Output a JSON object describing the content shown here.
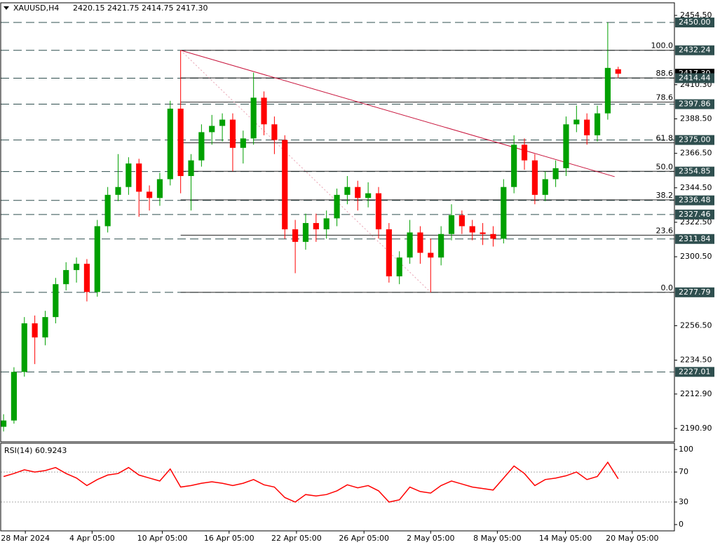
{
  "chart_data": [
    {
      "type": "candlestick",
      "title": "XAUUSD,H4",
      "subtitle": "2420.15 2421.75 2414.75 2417.30",
      "up_color": "#00a000",
      "down_color": "#ff0000",
      "level_color": "#2f4f4f",
      "candles": [
        [
          2192,
          2200,
          2189,
          2196
        ],
        [
          2196,
          2230,
          2194,
          2227
        ],
        [
          2227,
          2262,
          2224,
          2258
        ],
        [
          2258,
          2263,
          2232,
          2249
        ],
        [
          2249,
          2266,
          2244,
          2262
        ],
        [
          2262,
          2287,
          2258,
          2283
        ],
        [
          2283,
          2297,
          2279,
          2292
        ],
        [
          2292,
          2300,
          2284,
          2296
        ],
        [
          2296,
          2299,
          2272,
          2278
        ],
        [
          2278,
          2324,
          2275,
          2320
        ],
        [
          2320,
          2345,
          2316,
          2340
        ],
        [
          2340,
          2366,
          2336,
          2345
        ],
        [
          2345,
          2364,
          2340,
          2360
        ],
        [
          2360,
          2363,
          2326,
          2342
        ],
        [
          2342,
          2346,
          2330,
          2338
        ],
        [
          2338,
          2354,
          2333,
          2350
        ],
        [
          2350,
          2400,
          2346,
          2395
        ],
        [
          2395,
          2432.24,
          2341,
          2352
        ],
        [
          2352,
          2366,
          2330,
          2362
        ],
        [
          2362,
          2385,
          2358,
          2380
        ],
        [
          2380,
          2391,
          2372,
          2384
        ],
        [
          2384,
          2392,
          2374,
          2388
        ],
        [
          2388,
          2392,
          2355,
          2370
        ],
        [
          2370,
          2381,
          2360,
          2376
        ],
        [
          2376,
          2418,
          2372,
          2402
        ],
        [
          2402,
          2406,
          2378,
          2385
        ],
        [
          2385,
          2390,
          2366,
          2375
        ],
        [
          2375,
          2378,
          2312,
          2318
        ],
        [
          2318,
          2324,
          2290,
          2310
        ],
        [
          2310,
          2328,
          2305,
          2322
        ],
        [
          2322,
          2328,
          2310,
          2318
        ],
        [
          2318,
          2330,
          2312,
          2325
        ],
        [
          2325,
          2344,
          2320,
          2340
        ],
        [
          2340,
          2352,
          2334,
          2345
        ],
        [
          2345,
          2349,
          2330,
          2338
        ],
        [
          2338,
          2348,
          2332,
          2341
        ],
        [
          2341,
          2345,
          2312,
          2318
        ],
        [
          2318,
          2322,
          2284,
          2288
        ],
        [
          2288,
          2304,
          2283,
          2300
        ],
        [
          2300,
          2324,
          2296,
          2316
        ],
        [
          2316,
          2320,
          2296,
          2303
        ],
        [
          2303,
          2312,
          2277.79,
          2300
        ],
        [
          2300,
          2320,
          2295,
          2315
        ],
        [
          2315,
          2334,
          2311,
          2327
        ],
        [
          2327,
          2330,
          2315,
          2320
        ],
        [
          2320,
          2324,
          2311,
          2316
        ],
        [
          2316,
          2322,
          2308,
          2315
        ],
        [
          2315,
          2320,
          2307,
          2312
        ],
        [
          2312,
          2350,
          2309,
          2345
        ],
        [
          2345,
          2378,
          2341,
          2372
        ],
        [
          2372,
          2376,
          2356,
          2362
        ],
        [
          2362,
          2366,
          2334,
          2340
        ],
        [
          2340,
          2355,
          2336,
          2350
        ],
        [
          2350,
          2362,
          2345,
          2357
        ],
        [
          2357,
          2390,
          2352,
          2385
        ],
        [
          2385,
          2397,
          2380,
          2388
        ],
        [
          2388,
          2392,
          2372,
          2378
        ],
        [
          2378,
          2397,
          2374,
          2392
        ],
        [
          2392,
          2450,
          2388,
          2421
        ],
        [
          2420.15,
          2421.75,
          2414.75,
          2417.3
        ]
      ],
      "xlim": [
        -0.34,
        64.4
      ],
      "xticks": [
        {
          "value": 2.09,
          "label": "28 Mar 2024"
        },
        {
          "value": 8.5,
          "label": "4 Apr 05:00"
        },
        {
          "value": 15.24,
          "label": "10 Apr 05:00"
        },
        {
          "value": 21.65,
          "label": "16 Apr 05:00"
        },
        {
          "value": 28.12,
          "label": "22 Apr 05:00"
        },
        {
          "value": 34.6,
          "label": "26 Apr 05:00"
        },
        {
          "value": 41.0,
          "label": "2 May 05:00"
        },
        {
          "value": 47.4,
          "label": "8 May 05:00"
        },
        {
          "value": 53.94,
          "label": "14 May 05:00"
        },
        {
          "value": 60.35,
          "label": "20 May 05:00"
        }
      ],
      "ylim": [
        2183.3,
        2462.1
      ],
      "yticks": [
        {
          "value": 2454.5,
          "label": "2454.50"
        },
        {
          "value": 2410.3,
          "label": "2410.30"
        },
        {
          "value": 2388.5,
          "label": "2388.50"
        },
        {
          "value": 2366.5,
          "label": "2366.50"
        },
        {
          "value": 2344.5,
          "label": "2344.50"
        },
        {
          "value": 2322.5,
          "label": "2322.50"
        },
        {
          "value": 2300.5,
          "label": "2300.50"
        },
        {
          "value": 2256.5,
          "label": "2256.50"
        },
        {
          "value": 2234.5,
          "label": "2234.50"
        },
        {
          "value": 2212.9,
          "label": "2212.90"
        },
        {
          "value": 2190.9,
          "label": "2190.90"
        }
      ],
      "last_price": {
        "value": 2417.3,
        "label": "2417.30"
      },
      "levels": [
        {
          "value": 2450,
          "label": "2450.00"
        },
        {
          "value": 2432.24,
          "label": "2432.24"
        },
        {
          "value": 2414.44,
          "label": "2414.44"
        },
        {
          "value": 2397.86,
          "label": "2397.86"
        },
        {
          "value": 2375,
          "label": "2375.00"
        },
        {
          "value": 2354.85,
          "label": "2354.85"
        },
        {
          "value": 2336.48,
          "label": "2336.48"
        },
        {
          "value": 2327.46,
          "label": "2327.46"
        },
        {
          "value": 2311.84,
          "label": "2311.84"
        },
        {
          "value": 2277.79,
          "label": "2277.79"
        },
        {
          "value": 2227.01,
          "label": "2227.01"
        }
      ],
      "fib": {
        "start": 17,
        "labels": [
          "100.0",
          "88.6",
          "78.6",
          "61.8",
          "50.0",
          "38.2",
          "23.6",
          "0.0"
        ],
        "prices": [
          2432.24,
          2414.63,
          2399.19,
          2373.24,
          2355.02,
          2336.79,
          2314.24,
          2277.79
        ]
      },
      "trendlines": [
        {
          "x": [
            17,
            58.66
          ],
          "y": [
            2432.24,
            2351.6
          ],
          "color": "#c8143c",
          "dash": "none"
        },
        {
          "x": [
            17,
            41
          ],
          "y": [
            2432.24,
            2277.79
          ],
          "color": "#e8a0b0",
          "dash": "2 3"
        }
      ]
    },
    {
      "type": "line",
      "title": "RSI(14) 60.9243",
      "color": "#ff0000",
      "values": [
        64,
        68,
        73,
        70,
        72,
        76,
        68,
        62,
        52,
        60,
        66,
        68,
        76,
        66,
        62,
        58,
        74,
        50,
        52,
        55,
        57,
        55,
        52,
        55,
        60,
        53,
        50,
        36,
        30,
        40,
        38,
        40,
        45,
        53,
        49,
        52,
        45,
        30,
        33,
        50,
        44,
        42,
        52,
        58,
        54,
        50,
        48,
        46,
        62,
        78,
        68,
        52,
        60,
        62,
        65,
        70,
        60,
        64,
        83,
        61
      ],
      "xlim": [
        -0.34,
        64.4
      ],
      "ylim": [
        -8.4,
        108.4
      ],
      "yticks": [
        100,
        70,
        30,
        0
      ],
      "levels": [
        70,
        30
      ]
    }
  ]
}
